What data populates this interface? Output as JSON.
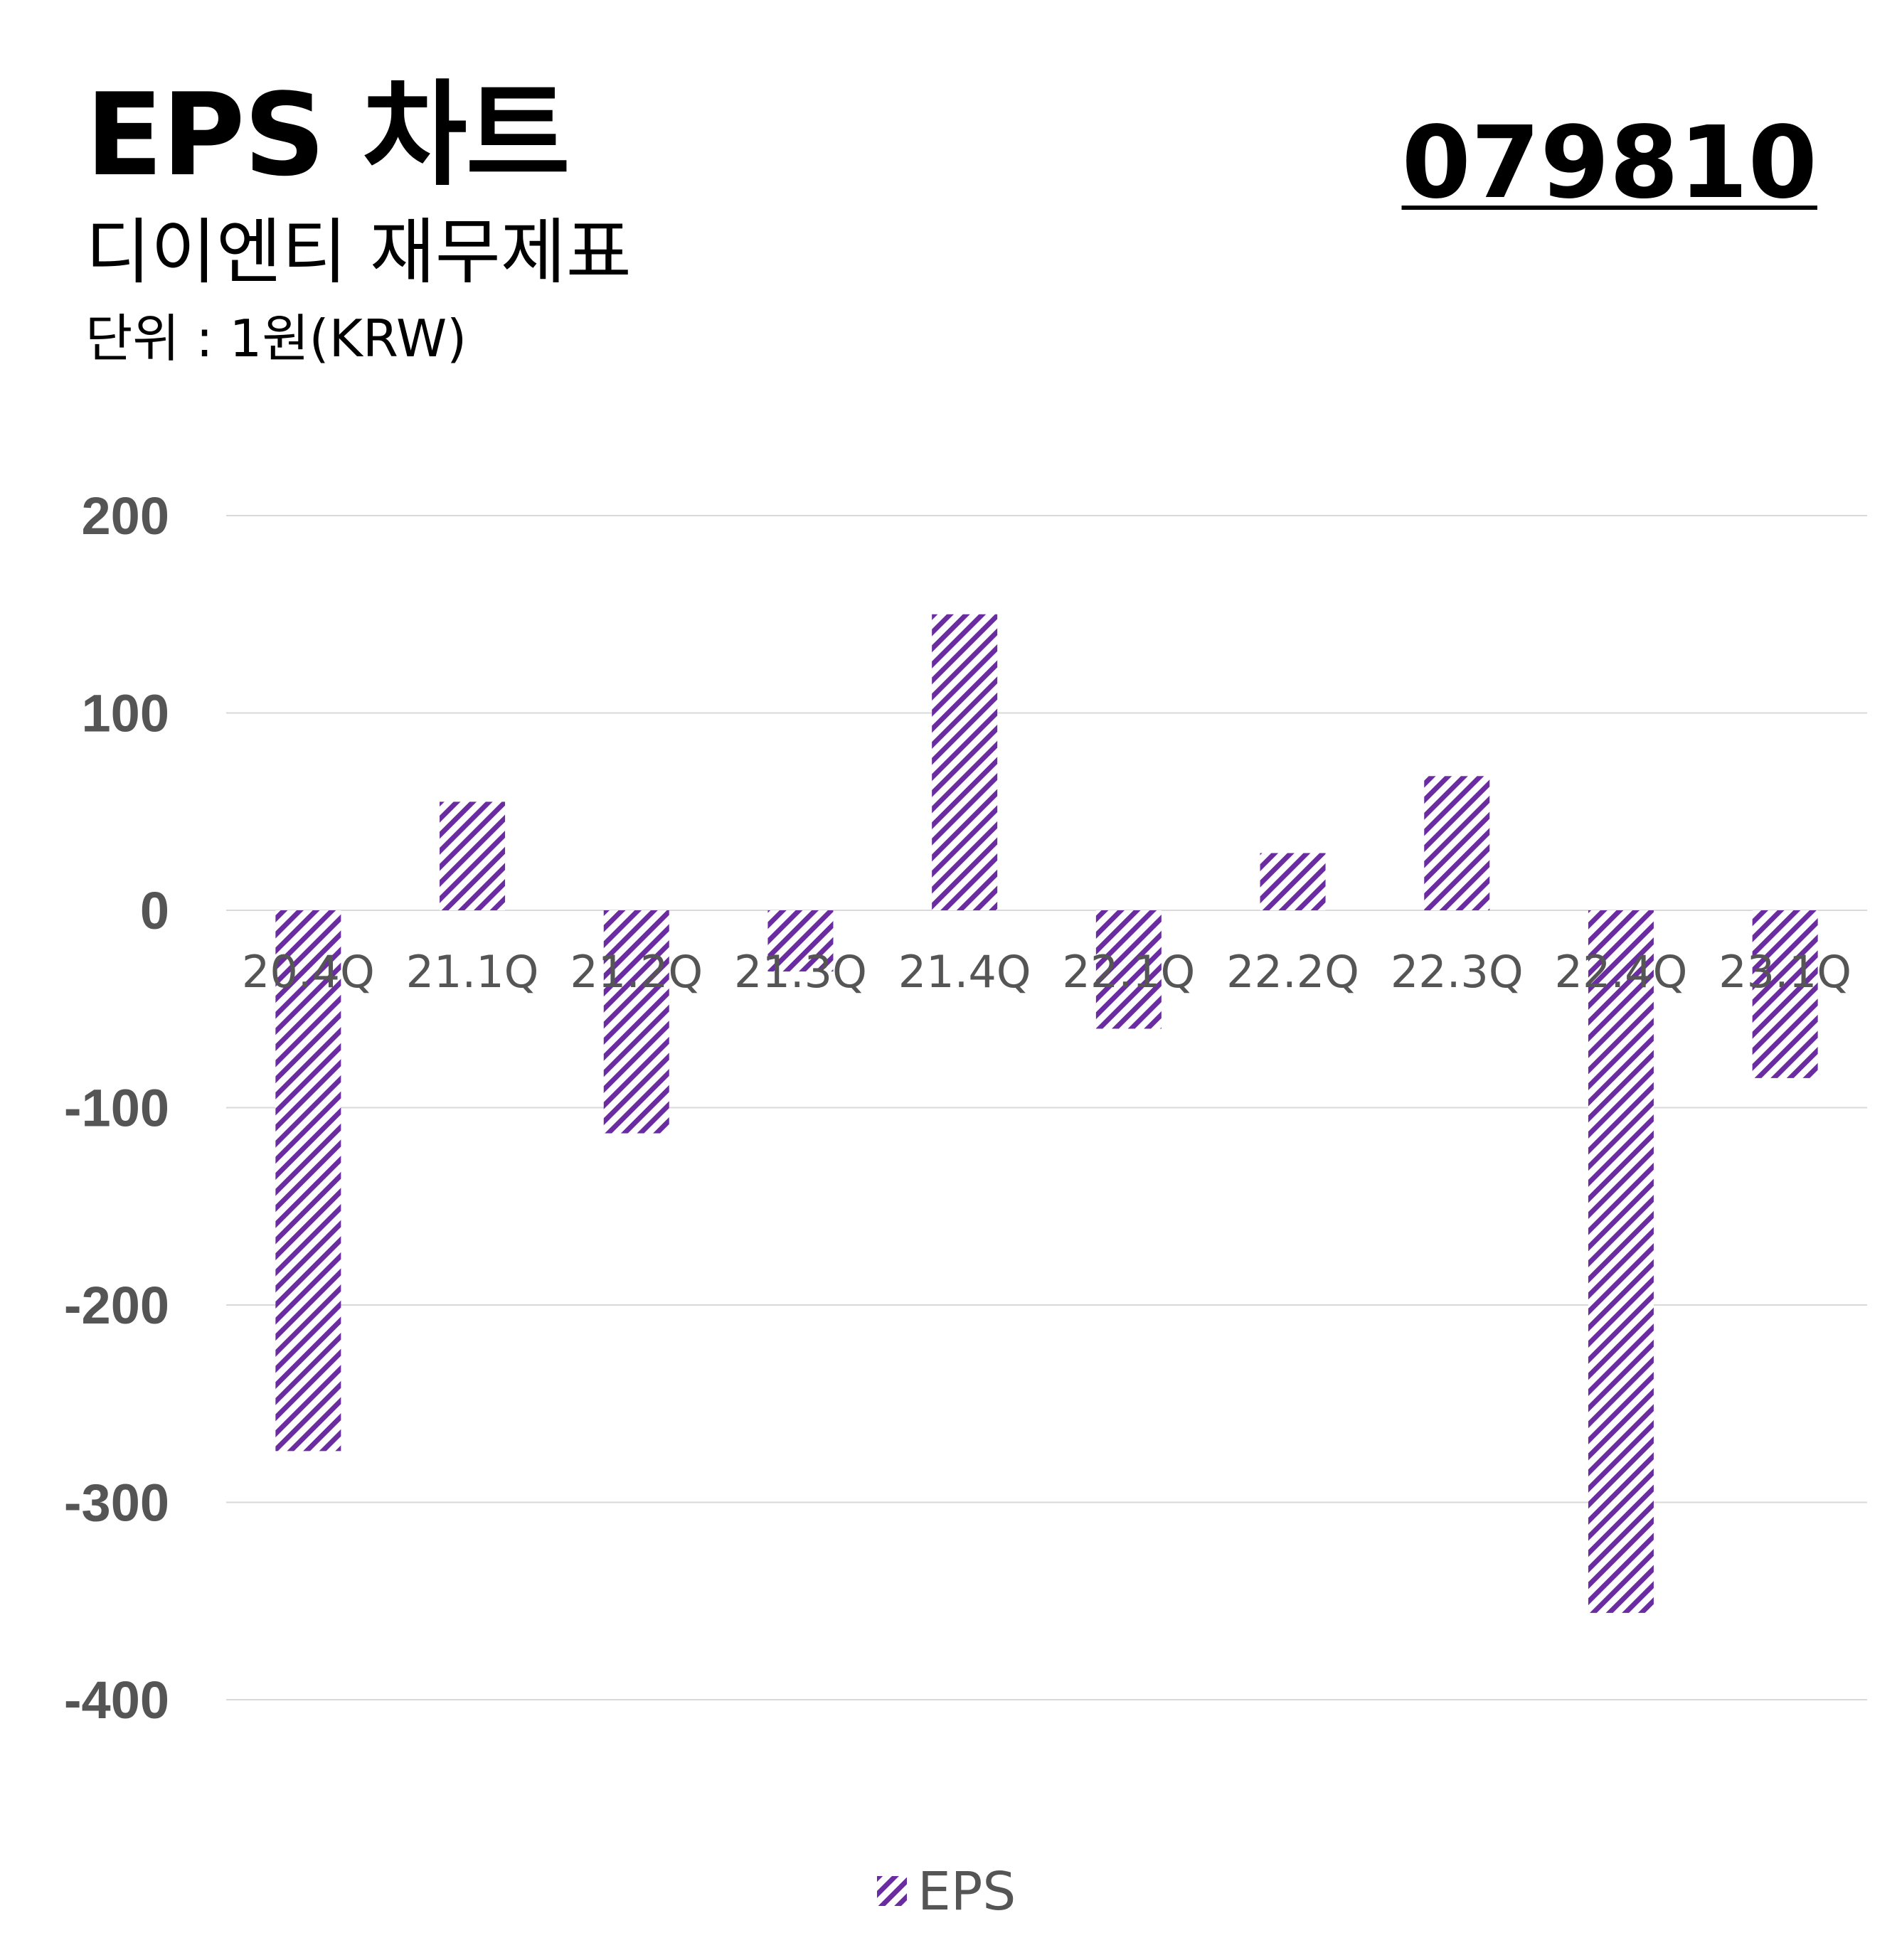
{
  "header": {
    "title": "EPS 차트",
    "ticker": "079810",
    "subtitle": "디이엔티 재무제표",
    "unit": "단위 : 1원(KRW)"
  },
  "colors": {
    "bar_stripe": "#6a2ca0",
    "grid": "#d9d9d9",
    "tick_text": "#555555"
  },
  "chart_data": {
    "type": "bar",
    "categories": [
      "20.4Q",
      "21.1Q",
      "21.2Q",
      "21.3Q",
      "21.4Q",
      "22.1Q",
      "22.2Q",
      "22.3Q",
      "22.4Q",
      "23.1Q"
    ],
    "series": [
      {
        "name": "EPS",
        "values": [
          -274,
          55,
          -113,
          -31,
          150,
          -60,
          29,
          68,
          -356,
          -85
        ],
        "pattern": "diagonal-hatch"
      }
    ],
    "ylim": [
      -400,
      200
    ],
    "yticks": [
      200,
      100,
      0,
      -100,
      -200,
      -300,
      -400
    ],
    "grid": true,
    "legend": "bottom-center",
    "xlabel": "",
    "ylabel": ""
  }
}
